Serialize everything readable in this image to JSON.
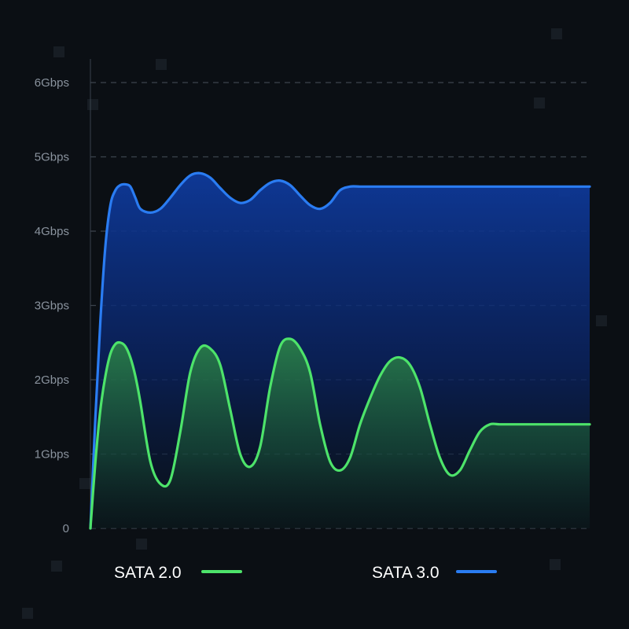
{
  "chart_data": {
    "type": "area",
    "y_ticks": [
      "0",
      "1Gbps",
      "2Gbps",
      "3Gbps",
      "4Gbps",
      "5Gbps",
      "6Gbps"
    ],
    "ylim": [
      0,
      6
    ],
    "grid": true,
    "legend_position": "bottom",
    "x": [
      0,
      0.1,
      0.2,
      0.3,
      0.4,
      0.5,
      0.6,
      0.7,
      0.8,
      0.9,
      1.0,
      1.2,
      1.4,
      1.6,
      1.8,
      2.0,
      2.2,
      2.4,
      2.6,
      2.8,
      3.0,
      3.2,
      3.4,
      3.6,
      3.8,
      4.0,
      4.2,
      4.4,
      4.6,
      4.8,
      5.0,
      5.2,
      5.4,
      5.6,
      5.8,
      6.0,
      6.2,
      6.4,
      6.6,
      6.8,
      7.0,
      7.2,
      7.4,
      7.6,
      7.8,
      8.0,
      8.2,
      8.4,
      8.6,
      8.8,
      9.0,
      9.2,
      9.4,
      9.6,
      9.8,
      10.0
    ],
    "series": [
      {
        "name": "SATA 2.0",
        "color": "#4de36a",
        "values": [
          0,
          0.9,
          1.6,
          2.05,
          2.35,
          2.48,
          2.5,
          2.45,
          2.3,
          2.05,
          1.7,
          0.9,
          0.6,
          0.65,
          1.3,
          2.1,
          2.43,
          2.42,
          2.2,
          1.6,
          1.0,
          0.83,
          1.1,
          1.9,
          2.45,
          2.55,
          2.42,
          2.1,
          1.4,
          0.9,
          0.78,
          0.95,
          1.4,
          1.75,
          2.05,
          2.25,
          2.3,
          2.2,
          1.9,
          1.4,
          0.95,
          0.72,
          0.78,
          1.05,
          1.3,
          1.4,
          1.4,
          1.4,
          1.4,
          1.4,
          1.4,
          1.4,
          1.4,
          1.4,
          1.4,
          1.4
        ]
      },
      {
        "name": "SATA 3.0",
        "color": "#2a7cf2",
        "values": [
          0,
          1.5,
          2.8,
          3.8,
          4.35,
          4.55,
          4.62,
          4.63,
          4.6,
          4.45,
          4.3,
          4.25,
          4.3,
          4.45,
          4.62,
          4.75,
          4.78,
          4.72,
          4.58,
          4.45,
          4.38,
          4.42,
          4.55,
          4.65,
          4.68,
          4.62,
          4.48,
          4.35,
          4.3,
          4.38,
          4.55,
          4.6,
          4.6,
          4.6,
          4.6,
          4.6,
          4.6,
          4.6,
          4.6,
          4.6,
          4.6,
          4.6,
          4.6,
          4.6,
          4.6,
          4.6,
          4.6,
          4.6,
          4.6,
          4.6,
          4.6,
          4.6,
          4.6,
          4.6,
          4.6,
          4.6
        ]
      }
    ]
  }
}
